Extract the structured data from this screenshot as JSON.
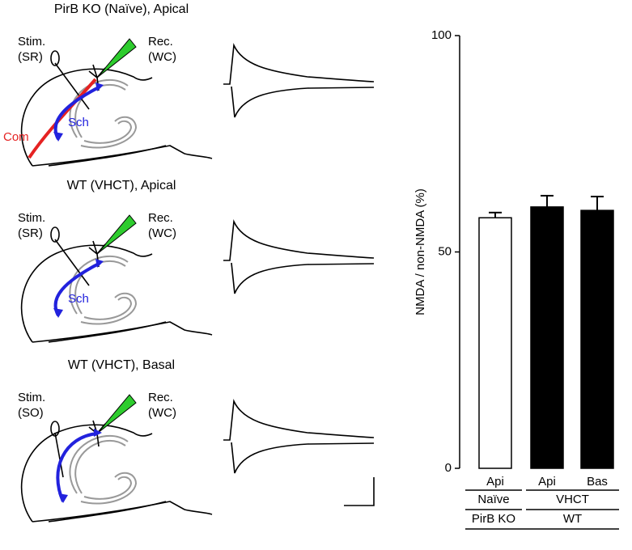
{
  "panels": [
    {
      "title": "PirB KO (Naïve), Apical",
      "stim": [
        "Stim.",
        "(SR)"
      ],
      "rec": [
        "Rec.",
        "(WC)"
      ],
      "paths": [
        "Com",
        "Sch"
      ]
    },
    {
      "title": "WT (VHCT), Apical",
      "stim": [
        "Stim.",
        "(SR)"
      ],
      "rec": [
        "Rec.",
        "(WC)"
      ],
      "paths": [
        "Sch"
      ]
    },
    {
      "title": "WT (VHCT), Basal",
      "stim": [
        "Stim.",
        "(SO)"
      ],
      "rec": [
        "Rec.",
        "(WC)"
      ],
      "paths": []
    }
  ],
  "chart_data": {
    "type": "bar",
    "y_label": "NMDA / non-NMDA (%)",
    "categories": [
      "Api",
      "Api",
      "Bas"
    ],
    "values": [
      57.9,
      60.4,
      59.6
    ],
    "errors": [
      1.2,
      2.6,
      3.2
    ],
    "colors": [
      "#ffffff",
      "#000000",
      "#000000"
    ],
    "group_rows": [
      [
        "Naïve",
        "VHCT"
      ],
      [
        "PirB KO",
        "WT"
      ]
    ],
    "ylim": [
      0,
      100
    ],
    "yticks": [
      0,
      50,
      100
    ]
  }
}
